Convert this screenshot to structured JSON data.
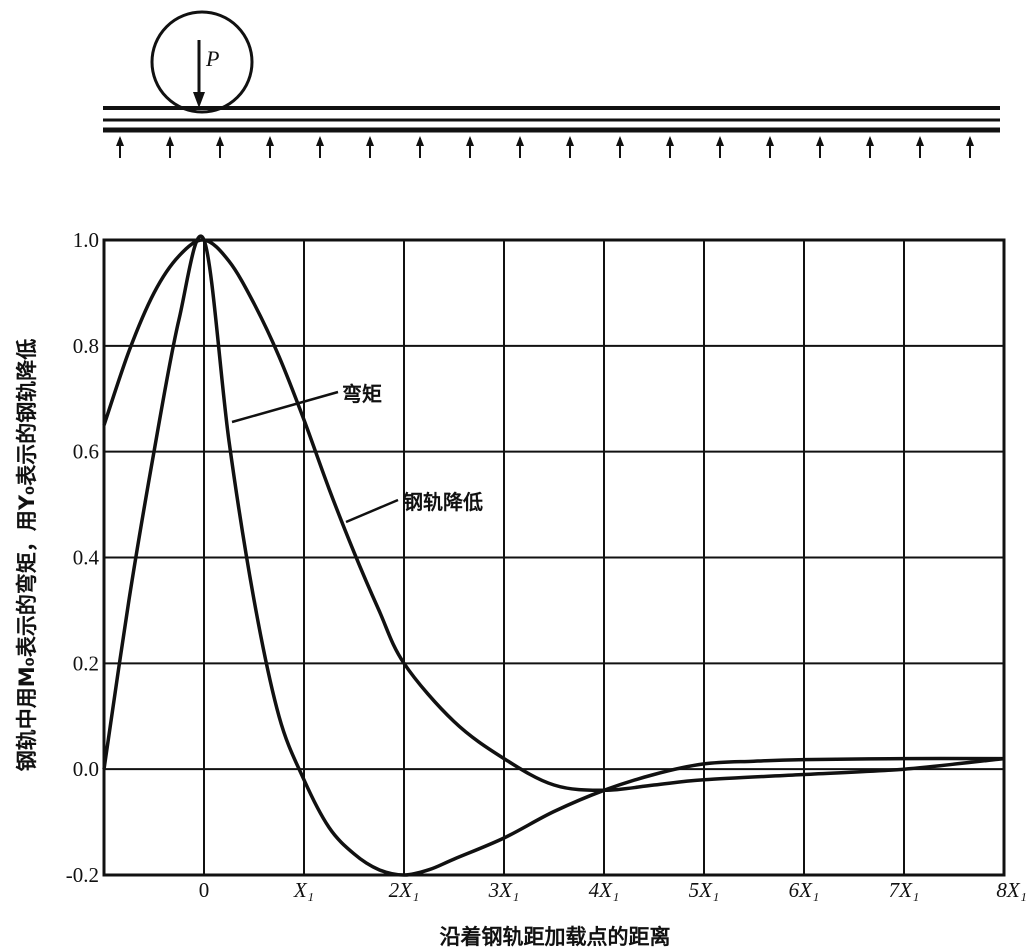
{
  "diagram": {
    "load_label": "P"
  },
  "chart_data": {
    "type": "line",
    "xlabel": "沿着钢轨距加载点的距离",
    "ylabel": "钢轨中用M₀表示的弯矩，用Y₀表示的钢轨降低",
    "xlim": [
      -1,
      8
    ],
    "ylim": [
      -0.2,
      1.0
    ],
    "grid": true,
    "x_ticks": [
      {
        "value": 0,
        "label": "0"
      },
      {
        "value": 1,
        "label": "X₁"
      },
      {
        "value": 2,
        "label": "2X₁"
      },
      {
        "value": 3,
        "label": "3X₁"
      },
      {
        "value": 4,
        "label": "4X₁"
      },
      {
        "value": 5,
        "label": "5X₁"
      },
      {
        "value": 6,
        "label": "6X₁"
      },
      {
        "value": 7,
        "label": "7X₁"
      },
      {
        "value": 8,
        "label": "8X₁"
      }
    ],
    "y_ticks": [
      {
        "value": 1.0,
        "label": "1.0"
      },
      {
        "value": 0.8,
        "label": "0.8"
      },
      {
        "value": 0.6,
        "label": "0.6"
      },
      {
        "value": 0.4,
        "label": "0.4"
      },
      {
        "value": 0.2,
        "label": "0.2"
      },
      {
        "value": 0.0,
        "label": "0.0"
      },
      {
        "value": -0.2,
        "label": "-0.2"
      }
    ],
    "series": [
      {
        "name": "弯矩",
        "x": [
          -1.0,
          -0.75,
          -0.5,
          -0.25,
          0.0,
          0.25,
          0.5,
          0.75,
          1.0,
          1.25,
          1.5,
          1.75,
          2.0,
          2.25,
          2.5,
          3.0,
          3.5,
          4.0,
          4.5,
          5.0,
          5.5,
          6.0,
          7.0,
          8.0
        ],
        "y": [
          0.0,
          0.32,
          0.6,
          0.85,
          1.0,
          0.62,
          0.32,
          0.1,
          -0.02,
          -0.11,
          -0.16,
          -0.19,
          -0.2,
          -0.19,
          -0.17,
          -0.13,
          -0.08,
          -0.04,
          -0.01,
          0.01,
          0.015,
          0.018,
          0.02,
          0.02
        ]
      },
      {
        "name": "钢轨降低",
        "x": [
          -1.0,
          -0.75,
          -0.5,
          -0.25,
          0.0,
          0.25,
          0.5,
          0.75,
          1.0,
          1.25,
          1.5,
          1.75,
          2.0,
          2.5,
          3.0,
          3.5,
          4.0,
          4.5,
          5.0,
          6.0,
          7.0,
          8.0
        ],
        "y": [
          0.65,
          0.79,
          0.9,
          0.97,
          1.0,
          0.96,
          0.88,
          0.78,
          0.66,
          0.53,
          0.41,
          0.3,
          0.2,
          0.09,
          0.02,
          -0.03,
          -0.04,
          -0.03,
          -0.02,
          -0.01,
          0.0,
          0.02
        ]
      }
    ],
    "annotations": [
      {
        "text": "弯矩",
        "series": "弯矩"
      },
      {
        "text": "钢轨降低",
        "series": "钢轨降低"
      }
    ]
  }
}
